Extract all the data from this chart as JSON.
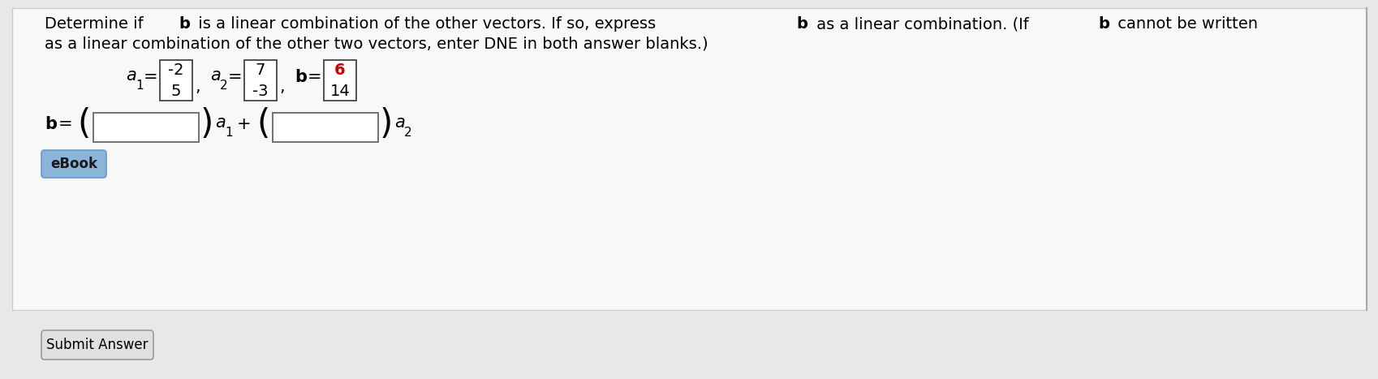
{
  "bg_outer_color": "#e8e8e8",
  "bg_panel_color": "#f5f5f5",
  "bg_bottom_color": "#e0e0e0",
  "text_color": "#000000",
  "red_color": "#cc0000",
  "blue_button_color": "#8ab4d8",
  "blue_button_border": "#6699cc",
  "a1_top": "-2",
  "a1_bot": "5",
  "a2_top": "7",
  "a2_bot": "-3",
  "b_top": "6",
  "b_bot": "14",
  "line1_parts": [
    [
      "Determine if ",
      false
    ],
    [
      "b",
      true
    ],
    [
      " is a linear combination of the other vectors. If so, express ",
      false
    ],
    [
      "b",
      true
    ],
    [
      " as a linear combination. (If ",
      false
    ],
    [
      "b",
      true
    ],
    [
      " cannot be written",
      false
    ]
  ],
  "line2": "as a linear combination of the other two vectors, enter DNE in both answer blanks.)",
  "font_size_text": 14,
  "font_size_math": 15
}
